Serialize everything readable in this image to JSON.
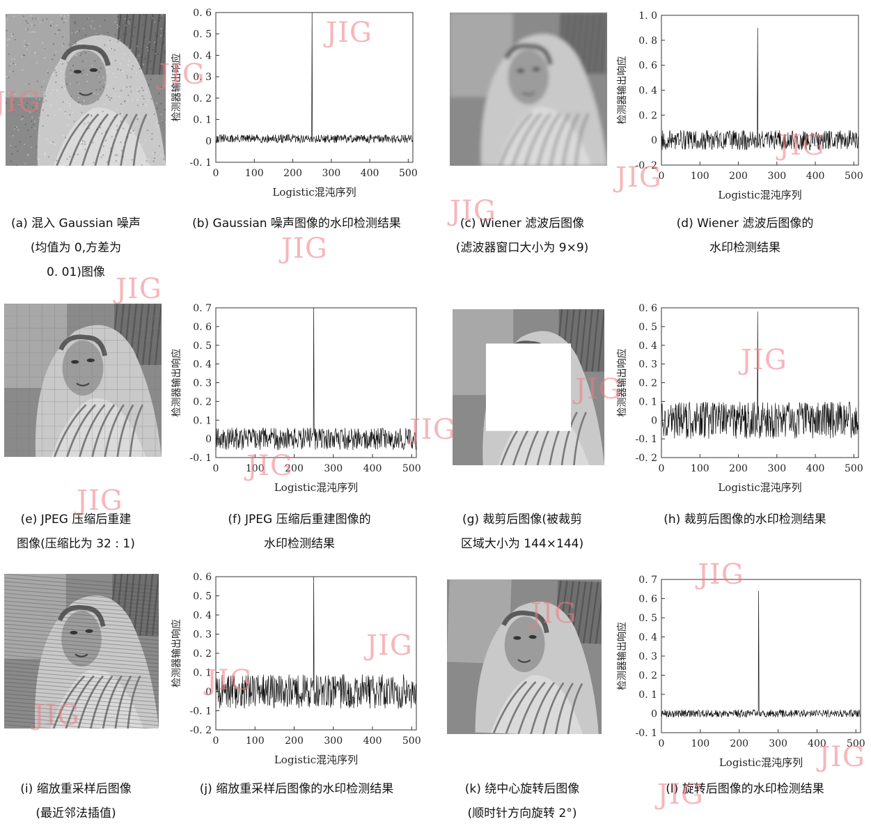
{
  "watermark": "JIG",
  "panels": [
    {
      "caption": [
        "(a) 混入 Gaussian 噪声",
        "(均值为 0,方差为",
        "0. 01)图像"
      ],
      "image": "barbara-gaussian-noise"
    },
    {
      "caption": [
        "(b) Gaussian 噪声图像的水印检测结果"
      ],
      "chart_index": 0
    },
    {
      "caption": [
        "(c) Wiener 滤波后图像",
        "(滤波器窗口大小为 9×9)"
      ],
      "image": "barbara-wiener-filtered"
    },
    {
      "caption": [
        "(d) Wiener 滤波后图像的",
        "水印检测结果"
      ],
      "chart_index": 1
    },
    {
      "caption": [
        "(e) JPEG 压缩后重建",
        "图像(压缩比为 32 : 1)"
      ],
      "image": "barbara-jpeg"
    },
    {
      "caption": [
        "(f) JPEG 压缩后重建图像的",
        "水印检测结果"
      ],
      "chart_index": 2
    },
    {
      "caption": [
        "(g) 裁剪后图像(被裁剪",
        "区域大小为 144×144)"
      ],
      "image": "barbara-cropped"
    },
    {
      "caption": [
        "(h) 裁剪后图像的水印检测结果"
      ],
      "chart_index": 3
    },
    {
      "caption": [
        "(i) 缩放重采样后图像",
        "(最近邻法插值)"
      ],
      "image": "barbara-rescaled"
    },
    {
      "caption": [
        "(j) 缩放重采样后图像的水印检测结果"
      ],
      "chart_index": 4
    },
    {
      "caption": [
        "(k) 绕中心旋转后图像",
        "(顺时针方向旋转 2°)"
      ],
      "image": "barbara-rotated"
    },
    {
      "caption": [
        "(l) 旋转后图像的水印检测结果"
      ],
      "chart_index": 5
    }
  ],
  "chart_data": [
    {
      "type": "line",
      "xlabel": "Logistic混沌序列",
      "ylabel": "检测器输出响应",
      "xlim": [
        0,
        512
      ],
      "ylim": [
        -0.1,
        0.6
      ],
      "xticks": [
        0,
        100,
        200,
        300,
        400,
        500
      ],
      "yticks": [
        "-0. 1",
        "0",
        "0. 1",
        "0. 2",
        "0. 3",
        "0. 4",
        "0. 5",
        "0. 6"
      ],
      "ytick_values": [
        -0.1,
        0,
        0.1,
        0.2,
        0.3,
        0.4,
        0.5,
        0.6
      ],
      "series": [
        {
          "baseline": 0.01,
          "noise_amplitude": 0.02,
          "peak_x": 250,
          "peak_y": 0.6,
          "n_points": 512
        }
      ]
    },
    {
      "type": "line",
      "xlabel": "Logistic混沌序列",
      "ylabel": "检测器输出响应",
      "xlim": [
        0,
        512
      ],
      "ylim": [
        -0.2,
        1.0
      ],
      "xticks": [
        0,
        100,
        200,
        300,
        400,
        500
      ],
      "yticks": [
        "-0. 2",
        "0",
        "0. 2",
        "0. 4",
        "0. 6",
        "0. 8",
        "1. 0"
      ],
      "ytick_values": [
        -0.2,
        0,
        0.2,
        0.4,
        0.6,
        0.8,
        1.0
      ],
      "series": [
        {
          "baseline": 0.0,
          "noise_amplitude": 0.08,
          "peak_x": 250,
          "peak_y": 0.9,
          "n_points": 512
        }
      ]
    },
    {
      "type": "line",
      "xlabel": "Logistic混沌序列",
      "ylabel": "检测器输出响应",
      "xlim": [
        0,
        512
      ],
      "ylim": [
        -0.1,
        0.7
      ],
      "xticks": [
        0,
        100,
        200,
        300,
        400,
        500
      ],
      "yticks": [
        "-0. 1",
        "0",
        "0. 1",
        "0. 2",
        "0. 3",
        "0. 4",
        "0. 5",
        "0. 6",
        "0. 7"
      ],
      "ytick_values": [
        -0.1,
        0,
        0.1,
        0.2,
        0.3,
        0.4,
        0.5,
        0.6,
        0.7
      ],
      "series": [
        {
          "baseline": 0.0,
          "noise_amplitude": 0.06,
          "peak_x": 250,
          "peak_y": 0.7,
          "n_points": 512
        }
      ]
    },
    {
      "type": "line",
      "xlabel": "Logistic混沌序列",
      "ylabel": "检测器输出响应",
      "xlim": [
        0,
        512
      ],
      "ylim": [
        -0.2,
        0.6
      ],
      "xticks": [
        0,
        100,
        200,
        300,
        400,
        500
      ],
      "yticks": [
        "-0. 2",
        "-0. 1",
        "0",
        "0. 1",
        "0. 2",
        "0. 3",
        "0. 4",
        "0. 5",
        "0. 6"
      ],
      "ytick_values": [
        -0.2,
        -0.1,
        0,
        0.1,
        0.2,
        0.3,
        0.4,
        0.5,
        0.6
      ],
      "series": [
        {
          "baseline": 0.0,
          "noise_amplitude": 0.1,
          "peak_x": 250,
          "peak_y": 0.58,
          "n_points": 512
        }
      ]
    },
    {
      "type": "line",
      "xlabel": "Logistic混沌序列",
      "ylabel": "检测器输出响应",
      "xlim": [
        0,
        512
      ],
      "ylim": [
        -0.2,
        0.6
      ],
      "xticks": [
        0,
        100,
        200,
        300,
        400,
        500
      ],
      "yticks": [
        "-0. 2",
        "-0. 1",
        "0",
        "0. 1",
        "0. 2",
        "0. 3",
        "0. 4",
        "0. 5",
        "0. 6"
      ],
      "ytick_values": [
        -0.2,
        -0.1,
        0,
        0.1,
        0.2,
        0.3,
        0.4,
        0.5,
        0.6
      ],
      "series": [
        {
          "baseline": 0.0,
          "noise_amplitude": 0.09,
          "peak_x": 250,
          "peak_y": 0.6,
          "n_points": 512
        }
      ]
    },
    {
      "type": "line",
      "xlabel": "Logistic混沌序列",
      "ylabel": "检测器输出响应",
      "xlim": [
        0,
        512
      ],
      "ylim": [
        -0.1,
        0.7
      ],
      "xticks": [
        0,
        100,
        200,
        300,
        400,
        500
      ],
      "yticks": [
        "-0. 1",
        "0",
        "0. 1",
        "0. 2",
        "0. 3",
        "0. 4",
        "0. 5",
        "0. 6",
        "0. 7"
      ],
      "ytick_values": [
        -0.1,
        0,
        0.1,
        0.2,
        0.3,
        0.4,
        0.5,
        0.6,
        0.7
      ],
      "series": [
        {
          "baseline": 0.0,
          "noise_amplitude": 0.02,
          "peak_x": 250,
          "peak_y": 0.64,
          "n_points": 512
        }
      ]
    }
  ]
}
